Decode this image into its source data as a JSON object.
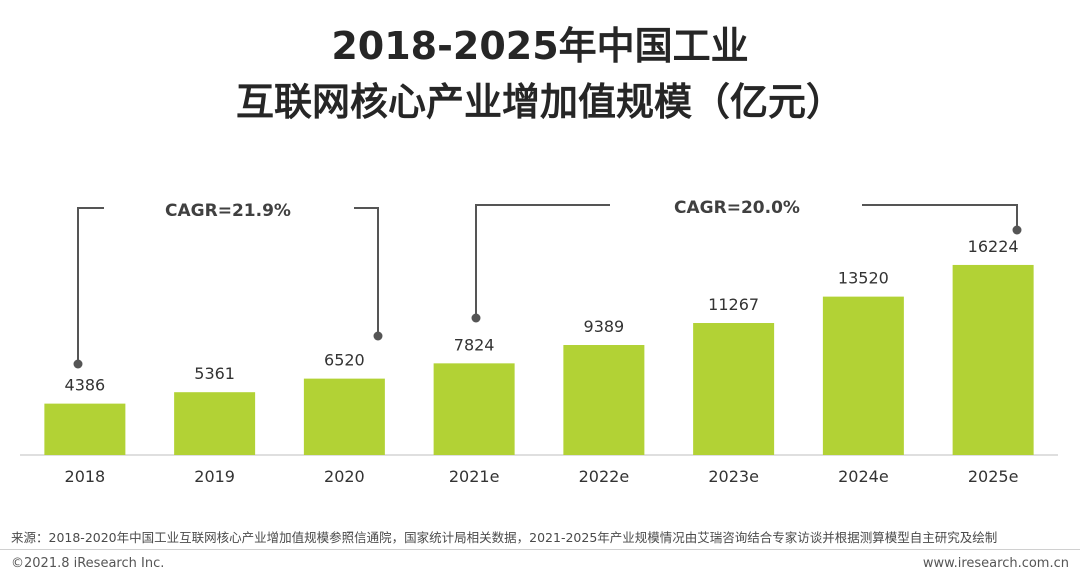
{
  "title_line1": "2018-2025年中国工业",
  "title_line2": "互联网核心产业增加值规模（亿元）",
  "chart_data": {
    "type": "bar",
    "title": "2018-2025年中国工业互联网核心产业增加值规模（亿元）",
    "categories": [
      "2018",
      "2019",
      "2020",
      "2021e",
      "2022e",
      "2023e",
      "2024e",
      "2025e"
    ],
    "values": [
      4386,
      5361,
      6520,
      7824,
      9389,
      11267,
      13520,
      16224
    ],
    "unit": "亿元",
    "ylim": [
      0,
      17500
    ],
    "bar_color": "#b2d235",
    "annotations": [
      {
        "label": "CAGR=21.9%",
        "from": "2018",
        "to": "2020"
      },
      {
        "label": "CAGR=20.0%",
        "from": "2021e",
        "to": "2025e"
      }
    ]
  },
  "colors": {
    "bar": "#b2d235",
    "bracket": "#555555",
    "axis": "#bfbfbf"
  },
  "footer": {
    "source": "来源：2018-2020年中国工业互联网核心产业增加值规模参照信通院，国家统计局相关数据，2021-2025年产业规模情况由艾瑞咨询结合专家访谈并根据测算模型自主研究及绘制",
    "copyright": "©2021.8 iResearch Inc.",
    "website": "www.iresearch.com.cn"
  }
}
